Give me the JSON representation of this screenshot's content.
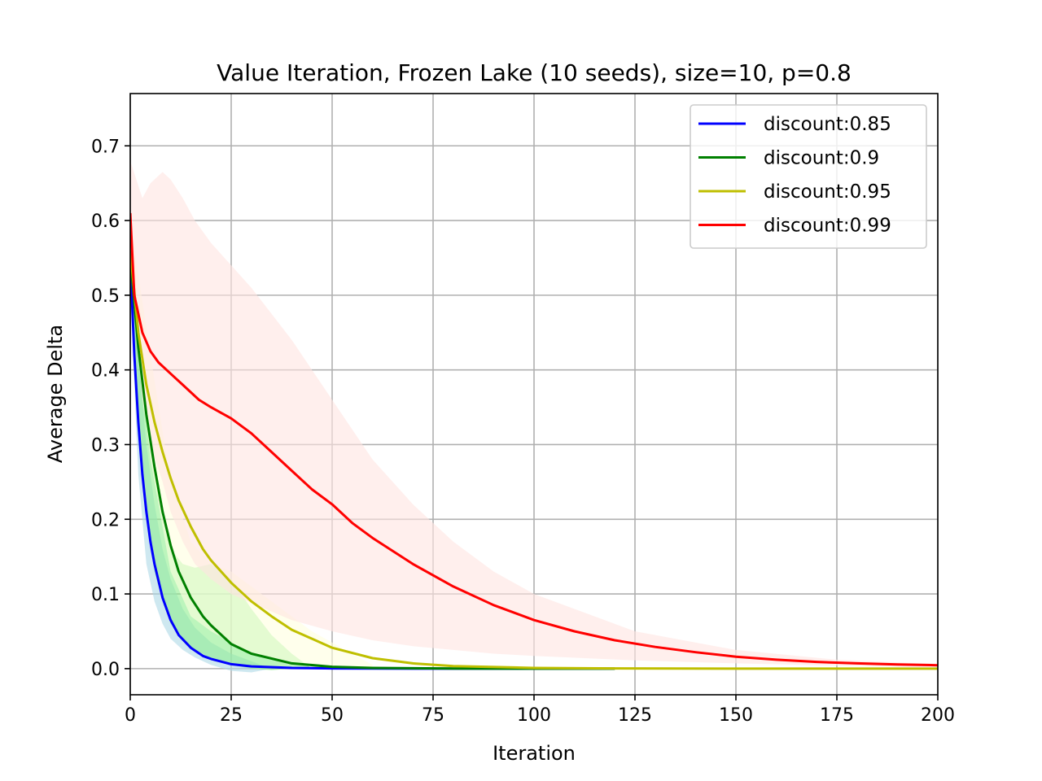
{
  "chart_data": {
    "type": "line",
    "title": "Value Iteration, Frozen Lake (10 seeds), size=10, p=0.8",
    "xlabel": "Iteration",
    "ylabel": "Average Delta",
    "xlim": [
      0,
      200
    ],
    "ylim": [
      -0.035,
      0.77
    ],
    "xticks": [
      0,
      25,
      50,
      75,
      100,
      125,
      150,
      175,
      200
    ],
    "yticks": [
      0.0,
      0.1,
      0.2,
      0.3,
      0.4,
      0.5,
      0.6,
      0.7
    ],
    "xtick_labels": [
      "0",
      "25",
      "50",
      "75",
      "100",
      "125",
      "150",
      "175",
      "200"
    ],
    "ytick_labels": [
      "0.0",
      "0.1",
      "0.2",
      "0.3",
      "0.4",
      "0.5",
      "0.6",
      "0.7"
    ],
    "grid": true,
    "legend_position": "top-right",
    "series": [
      {
        "name": "discount:0.85",
        "color": "#0000ff",
        "band_color": "#add8e6",
        "x": [
          0,
          1,
          2,
          3,
          4,
          5,
          6,
          8,
          10,
          12,
          15,
          18,
          20,
          25,
          30,
          40,
          50,
          60,
          80,
          100,
          120
        ],
        "y": [
          0.55,
          0.42,
          0.33,
          0.26,
          0.21,
          0.17,
          0.14,
          0.095,
          0.065,
          0.045,
          0.028,
          0.017,
          0.013,
          0.006,
          0.003,
          0.0009,
          0.0003,
          0.0001,
          0.0,
          0.0,
          0.0
        ],
        "band_x": [
          0,
          2,
          4,
          6,
          8,
          10,
          13,
          16,
          20,
          25,
          30,
          35
        ],
        "band_upper": [
          0.58,
          0.42,
          0.3,
          0.22,
          0.16,
          0.12,
          0.08,
          0.055,
          0.035,
          0.02,
          0.01,
          0.0
        ],
        "band_lower": [
          0.5,
          0.26,
          0.14,
          0.09,
          0.06,
          0.04,
          0.025,
          0.015,
          0.005,
          -0.003,
          -0.005,
          0.0
        ]
      },
      {
        "name": "discount:0.9",
        "color": "#008000",
        "band_color": "#90ee90",
        "x": [
          0,
          2,
          4,
          6,
          8,
          10,
          12,
          15,
          18,
          20,
          25,
          30,
          40,
          50,
          60,
          80,
          100,
          120
        ],
        "y": [
          0.55,
          0.43,
          0.34,
          0.27,
          0.21,
          0.165,
          0.13,
          0.095,
          0.07,
          0.058,
          0.033,
          0.02,
          0.007,
          0.0025,
          0.0009,
          0.0001,
          0.0,
          0.0
        ],
        "band_x": [
          0,
          2,
          4,
          6,
          8,
          10,
          13,
          16,
          20,
          25,
          30,
          35,
          40,
          45
        ],
        "band_upper": [
          0.6,
          0.46,
          0.35,
          0.27,
          0.2,
          0.16,
          0.14,
          0.135,
          0.14,
          0.12,
          0.08,
          0.045,
          0.02,
          0.0
        ],
        "band_lower": [
          0.5,
          0.32,
          0.2,
          0.13,
          0.09,
          0.06,
          0.04,
          0.025,
          0.014,
          0.005,
          0.0,
          -0.002,
          0.0,
          0.0
        ]
      },
      {
        "name": "discount:0.95",
        "color": "#bfbf00",
        "band_color": "#ffffe0",
        "x": [
          0,
          2,
          4,
          6,
          8,
          10,
          12,
          15,
          18,
          20,
          25,
          30,
          35,
          40,
          50,
          60,
          70,
          80,
          100,
          120,
          150,
          200
        ],
        "y": [
          0.56,
          0.45,
          0.38,
          0.33,
          0.29,
          0.255,
          0.225,
          0.19,
          0.16,
          0.145,
          0.115,
          0.09,
          0.07,
          0.052,
          0.028,
          0.014,
          0.007,
          0.0035,
          0.001,
          0.0003,
          0.0,
          0.0
        ],
        "band_x": [
          0,
          5,
          10,
          15,
          20,
          25,
          30,
          35,
          40,
          45,
          50,
          55,
          60
        ],
        "band_upper": [
          0.6,
          0.42,
          0.25,
          0.17,
          0.14,
          0.13,
          0.11,
          0.09,
          0.07,
          0.05,
          0.035,
          0.02,
          0.005
        ],
        "band_lower": [
          0.52,
          0.28,
          0.13,
          0.07,
          0.05,
          0.035,
          0.02,
          0.012,
          0.008,
          0.005,
          0.002,
          0.001,
          0.0
        ]
      },
      {
        "name": "discount:0.99",
        "color": "#ff0000",
        "band_color": "#ffe4e1",
        "x": [
          0,
          1,
          3,
          5,
          7,
          10,
          13,
          17,
          20,
          25,
          30,
          35,
          40,
          45,
          50,
          55,
          60,
          70,
          80,
          90,
          100,
          110,
          120,
          130,
          140,
          150,
          160,
          170,
          180,
          190,
          200
        ],
        "y": [
          0.61,
          0.5,
          0.45,
          0.425,
          0.41,
          0.395,
          0.38,
          0.36,
          0.35,
          0.335,
          0.315,
          0.29,
          0.265,
          0.24,
          0.22,
          0.195,
          0.175,
          0.14,
          0.11,
          0.085,
          0.065,
          0.05,
          0.038,
          0.029,
          0.022,
          0.016,
          0.012,
          0.009,
          0.007,
          0.0055,
          0.0045
        ],
        "band_x": [
          0,
          3,
          5,
          8,
          10,
          13,
          16,
          20,
          25,
          30,
          40,
          50,
          60,
          70,
          80,
          90,
          100,
          125,
          150,
          175,
          200
        ],
        "band_upper": [
          0.68,
          0.63,
          0.65,
          0.665,
          0.655,
          0.63,
          0.6,
          0.57,
          0.54,
          0.51,
          0.44,
          0.36,
          0.28,
          0.22,
          0.17,
          0.13,
          0.1,
          0.05,
          0.025,
          0.012,
          0.006
        ],
        "band_lower": [
          0.54,
          0.36,
          0.3,
          0.25,
          0.21,
          0.17,
          0.14,
          0.12,
          0.1,
          0.088,
          0.065,
          0.05,
          0.038,
          0.03,
          0.025,
          0.02,
          0.017,
          0.011,
          0.007,
          0.004,
          0.002
        ]
      }
    ]
  }
}
